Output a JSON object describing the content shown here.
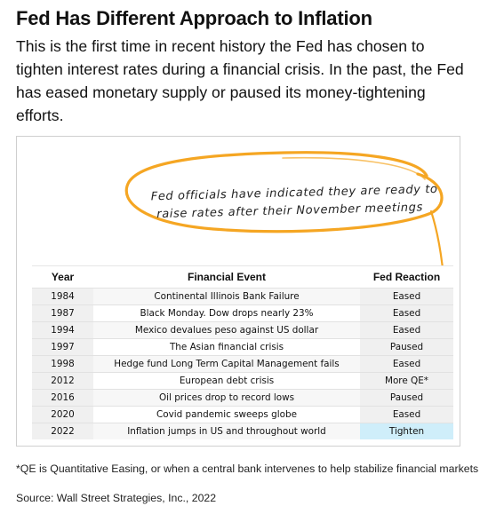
{
  "title": "Fed Has Different Approach to Inflation",
  "subtitle": "This is the first time in recent history the Fed has chosen to tighten interest rates during a financial crisis. In the past, the Fed has eased monetary supply or paused its money-tightening efforts.",
  "callout": {
    "line1": "Fed officials have indicated they are ready to",
    "line2": "raise rates after their November meetings",
    "color": "#f5a623"
  },
  "table": {
    "headers": [
      "Year",
      "Financial Event",
      "Fed Reaction"
    ],
    "rows": [
      {
        "year": "1984",
        "event": "Continental Illinois Bank Failure",
        "reaction": "Eased"
      },
      {
        "year": "1987",
        "event": "Black Monday. Dow drops nearly 23%",
        "reaction": "Eased"
      },
      {
        "year": "1994",
        "event": "Mexico devalues peso against US dollar",
        "reaction": "Eased"
      },
      {
        "year": "1997",
        "event": "The Asian financial crisis",
        "reaction": "Paused"
      },
      {
        "year": "1998",
        "event": "Hedge fund Long Term Capital Management fails",
        "reaction": "Eased"
      },
      {
        "year": "2012",
        "event": "European debt crisis",
        "reaction": "More QE*"
      },
      {
        "year": "2016",
        "event": "Oil prices drop to record lows",
        "reaction": "Paused"
      },
      {
        "year": "2020",
        "event": "Covid pandemic sweeps globe",
        "reaction": "Eased"
      },
      {
        "year": "2022",
        "event": "Inflation jumps in US and throughout world",
        "reaction": "Tighten"
      }
    ],
    "highlight_color": "#cfeefa"
  },
  "footnote": "*QE is Quantitative Easing, or when a central bank intervenes to help stabilize financial markets",
  "source": "Source: Wall Street Strategies, Inc., 2022"
}
